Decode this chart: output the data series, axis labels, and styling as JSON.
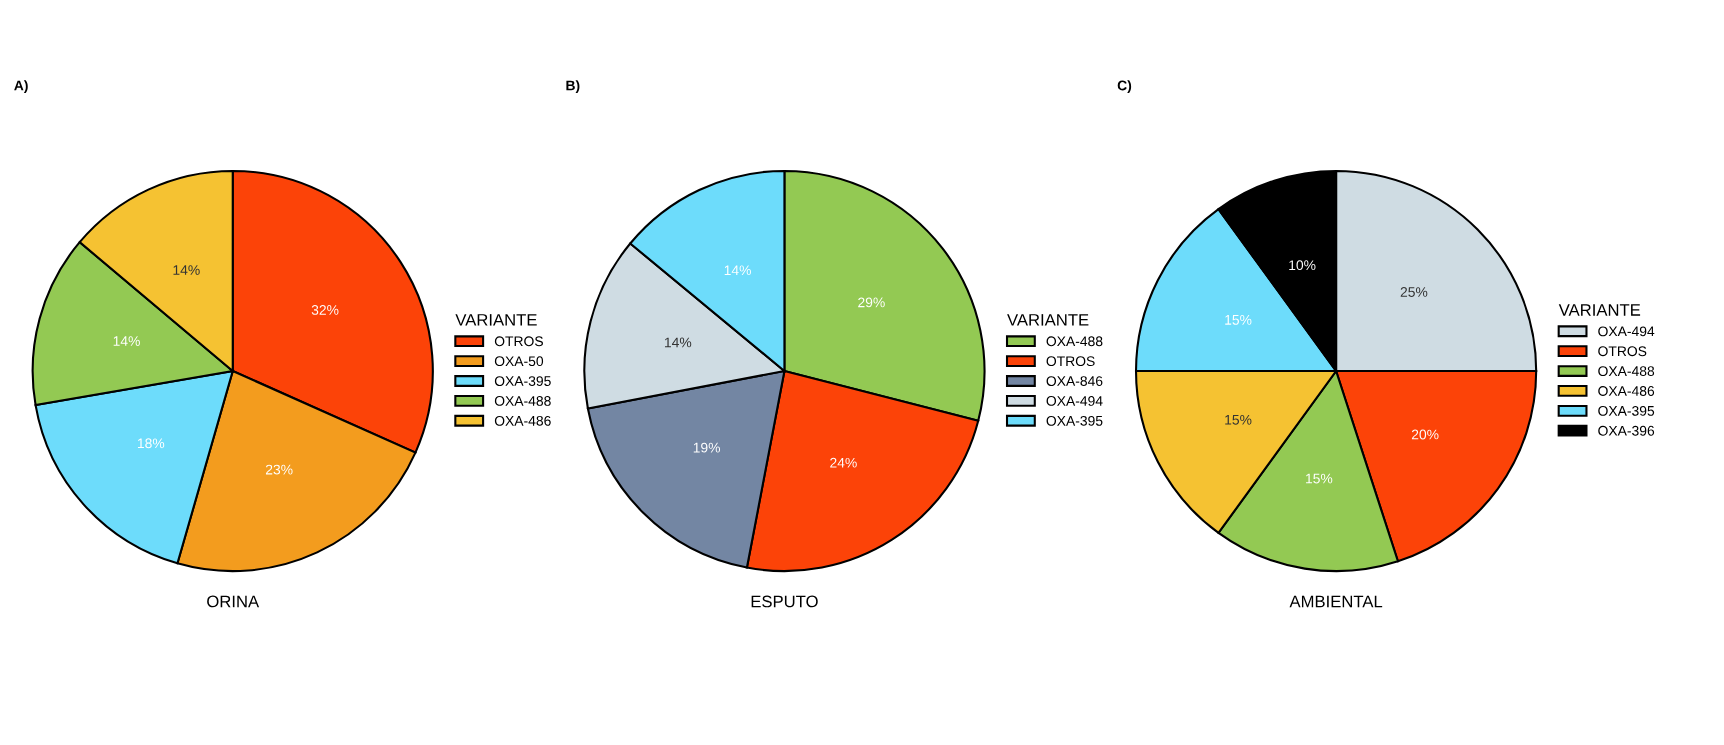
{
  "chart_data": [
    {
      "type": "pie",
      "title": "A)",
      "xlabel": "ORINA",
      "legend_title": "VARIANTE",
      "legend": "right",
      "categories": [
        "OTROS",
        "OXA-50",
        "OXA-395",
        "OXA-488",
        "OXA-486"
      ],
      "values": [
        32,
        23,
        18,
        14,
        14
      ],
      "value_labels": [
        "32%",
        "23%",
        "18%",
        "14%",
        "14%"
      ],
      "colors": [
        "#fc4308",
        "#f39c1e",
        "#6ddcfb",
        "#93c953",
        "#f5c232"
      ]
    },
    {
      "type": "pie",
      "title": "B)",
      "xlabel": "ESPUTO",
      "legend_title": "VARIANTE",
      "legend": "right",
      "categories": [
        "OXA-488",
        "OTROS",
        "OXA-846",
        "OXA-494",
        "OXA-395"
      ],
      "values": [
        29,
        24,
        19,
        14,
        14
      ],
      "value_labels": [
        "29%",
        "24%",
        "19%",
        "14%",
        "14%"
      ],
      "colors": [
        "#93c953",
        "#fc4308",
        "#7386a3",
        "#cfdce3",
        "#6ddcfb"
      ]
    },
    {
      "type": "pie",
      "title": "C)",
      "xlabel": "AMBIENTAL",
      "legend_title": "VARIANTE",
      "legend": "right",
      "categories": [
        "OXA-494",
        "OTROS",
        "OXA-488",
        "OXA-486",
        "OXA-395",
        "OXA-396"
      ],
      "values": [
        25,
        20,
        15,
        15,
        15,
        10
      ],
      "value_labels": [
        "25%",
        "20%",
        "15%",
        "15%",
        "15%",
        "10%"
      ],
      "colors": [
        "#cfdce3",
        "#fc4308",
        "#93c953",
        "#f5c232",
        "#6ddcfb",
        "#000000"
      ]
    }
  ]
}
